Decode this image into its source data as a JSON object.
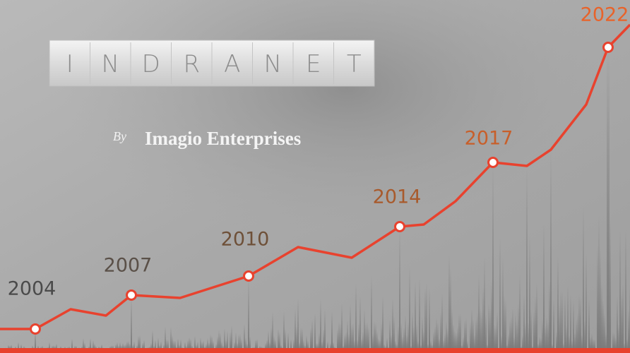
{
  "logo": {
    "letters": [
      "I",
      "N",
      "D",
      "R",
      "A",
      "N",
      "E",
      "T"
    ]
  },
  "byline": {
    "prefix": "By",
    "name": "Imagio Enterprises"
  },
  "milestones": [
    "2004",
    "2007",
    "2010",
    "2014",
    "2017",
    "2022"
  ]
}
